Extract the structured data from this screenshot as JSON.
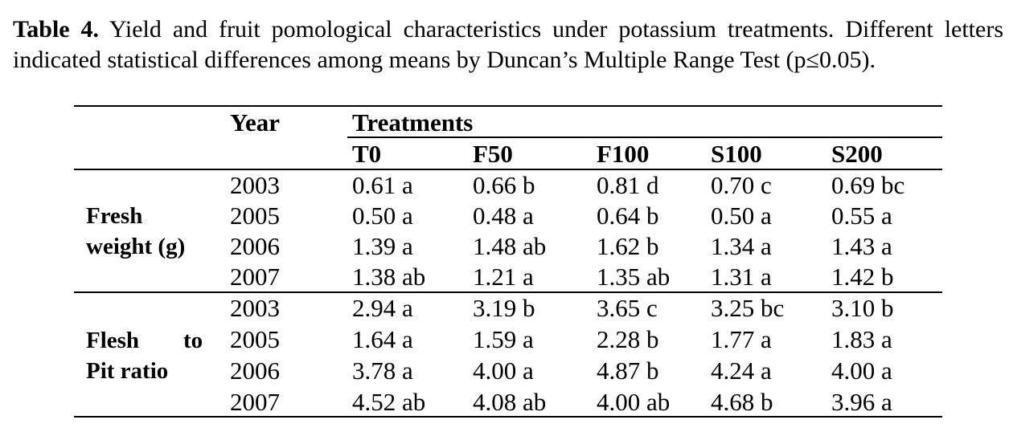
{
  "caption": {
    "label": "Table 4.",
    "text": " Yield and fruit pomological characteristics under potassium treatments. Different letters indicated statistical differences among means by Duncan’s Multiple Range Test (p≤0.05)."
  },
  "table": {
    "year_header": "Year",
    "treatments_header": "Treatments",
    "treatments": [
      "T0",
      "F50",
      "F100",
      "S100",
      "S200"
    ],
    "groups": [
      {
        "label_line1": "Fresh",
        "label_line2": "weight (g)",
        "rows": [
          {
            "year": "2003",
            "values": [
              "0.61 a",
              "0.66 b",
              "0.81 d",
              "0.70 c",
              "0.69 bc"
            ]
          },
          {
            "year": "2005",
            "values": [
              "0.50 a",
              "0.48 a",
              "0.64 b",
              "0.50 a",
              "0.55 a"
            ]
          },
          {
            "year": "2006",
            "values": [
              "1.39 a",
              "1.48 ab",
              "1.62 b",
              "1.34 a",
              "1.43 a"
            ]
          },
          {
            "year": "2007",
            "values": [
              "1.38 ab",
              "1.21 a",
              "1.35 ab",
              "1.31 a",
              "1.42 b"
            ]
          }
        ]
      },
      {
        "label_line1a": "Flesh",
        "label_line1b": "to",
        "label_line2": "Pit ratio",
        "rows": [
          {
            "year": "2003",
            "values": [
              "2.94 a",
              "3.19 b",
              "3.65 c",
              "3.25 bc",
              "3.10 b"
            ]
          },
          {
            "year": "2005",
            "values": [
              "1.64 a",
              "1.59 a",
              "2.28 b",
              "1.77 a",
              "1.83 a"
            ]
          },
          {
            "year": "2006",
            "values": [
              "3.78 a",
              "4.00 a",
              "4.87 b",
              "4.24 a",
              "4.00 a"
            ]
          },
          {
            "year": "2007",
            "values": [
              "4.52 ab",
              "4.08 ab",
              "4.00 ab",
              "4.68 b",
              "3.96 a"
            ]
          }
        ]
      }
    ]
  }
}
